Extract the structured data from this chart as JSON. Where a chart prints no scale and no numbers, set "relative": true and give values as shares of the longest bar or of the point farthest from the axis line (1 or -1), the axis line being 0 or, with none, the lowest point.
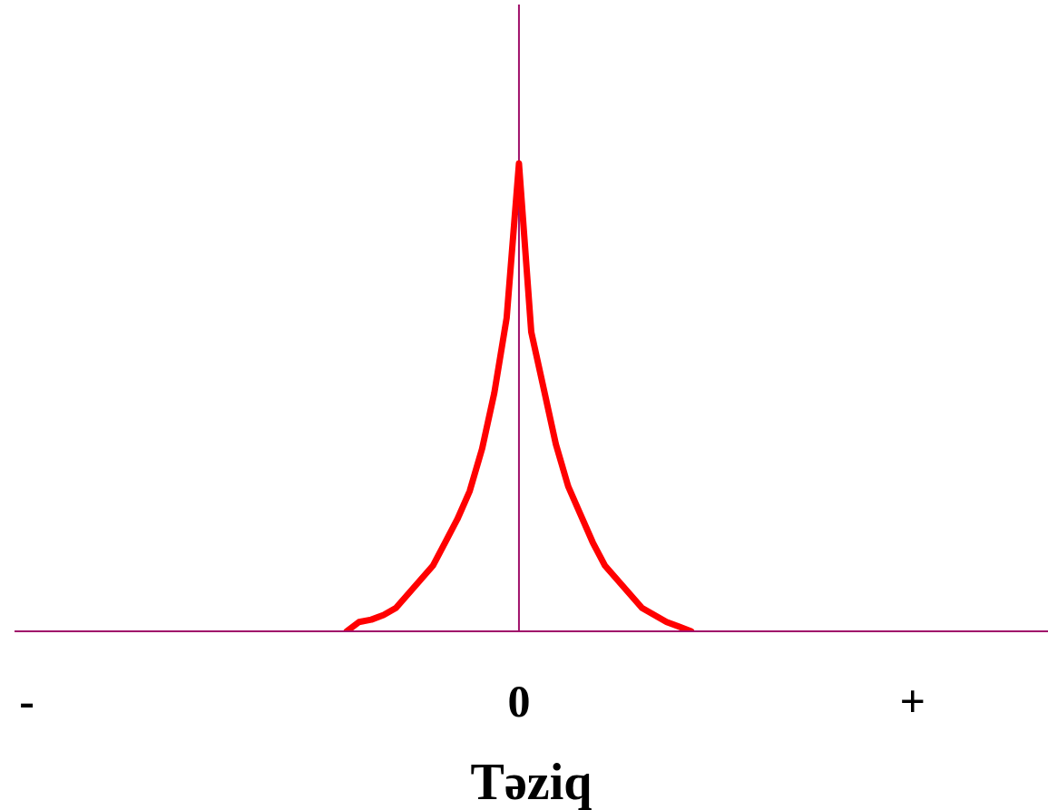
{
  "chart_data": {
    "type": "line",
    "xlabel": "Təziq",
    "relative": true,
    "categories": [
      null,
      "-",
      null,
      null,
      null,
      null,
      null,
      null,
      null,
      null,
      null,
      null,
      null,
      null,
      null,
      null,
      null,
      null,
      null,
      null,
      null,
      null,
      null,
      null,
      null,
      null,
      null,
      null,
      null,
      null,
      null,
      null,
      null,
      null,
      null,
      null,
      null,
      null,
      null,
      null,
      null,
      "0",
      null,
      null,
      null,
      null,
      null,
      null,
      null,
      null,
      null,
      null,
      null,
      null,
      null,
      null,
      null,
      null,
      null,
      null,
      null,
      null,
      null,
      null,
      null,
      null,
      null,
      null,
      null,
      null,
      null,
      null,
      null,
      "+",
      null,
      null,
      null,
      null,
      null,
      null,
      null,
      null,
      null,
      null,
      null
    ],
    "series": [
      {
        "color": "#ff0000",
        "values": [
          null,
          null,
          null,
          null,
          null,
          null,
          null,
          null,
          null,
          null,
          null,
          null,
          null,
          null,
          null,
          null,
          null,
          null,
          null,
          null,
          null,
          null,
          null,
          null,
          null,
          null,
          null,
          0,
          0.02,
          0.025,
          0.035,
          0.05,
          0.08,
          0.11,
          0.14,
          0.19,
          0.24,
          0.3,
          0.39,
          0.51,
          0.67,
          1,
          0.64,
          0.52,
          0.4,
          0.31,
          0.25,
          0.19,
          0.14,
          0.11,
          0.08,
          0.05,
          0.035,
          0.02,
          0.01,
          0,
          null,
          null,
          null,
          null,
          null,
          null,
          null,
          null,
          null,
          null,
          null,
          null,
          null,
          null,
          null,
          null,
          null,
          null,
          null,
          null,
          null,
          null,
          null,
          null,
          null,
          null,
          null,
          null,
          null
        ]
      }
    ],
    "ref_lines": [
      {
        "axis": "x",
        "value": "0",
        "color": "#a0106a"
      }
    ],
    "marker": "none",
    "line_style": "solid"
  }
}
